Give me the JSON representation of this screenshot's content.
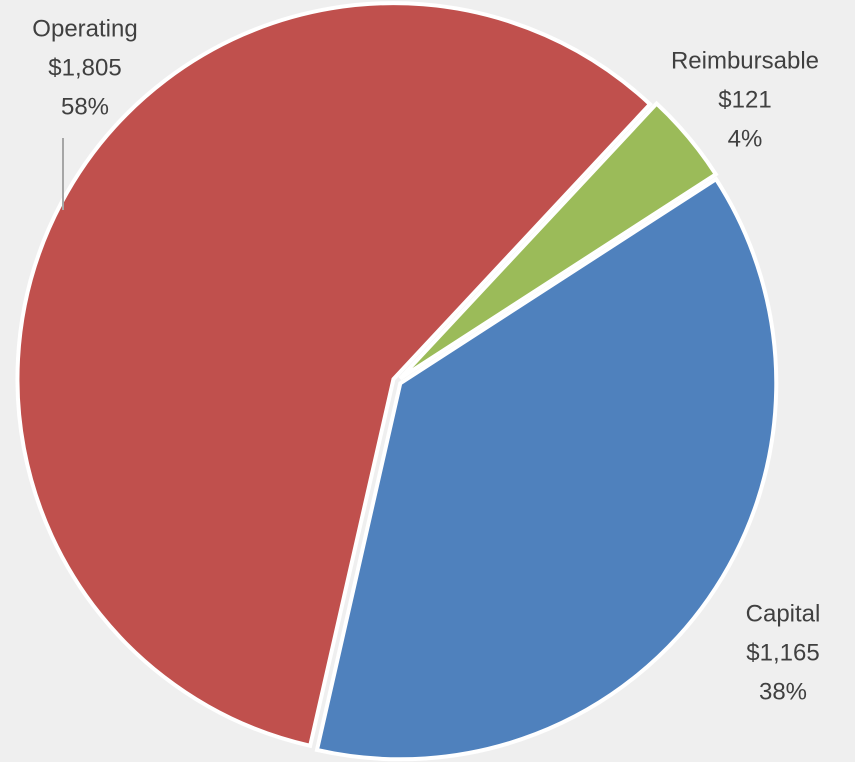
{
  "chart_data": {
    "type": "pie",
    "categories": [
      "Operating",
      "Reimbursable",
      "Capital"
    ],
    "values": [
      1805,
      121,
      1165
    ],
    "value_labels": [
      "$1,805",
      "$121",
      "$1,165"
    ],
    "percent_labels": [
      "58%",
      "4%",
      "38%"
    ],
    "colors": [
      "#c0504d",
      "#9bbb59",
      "#4f81bd"
    ]
  }
}
